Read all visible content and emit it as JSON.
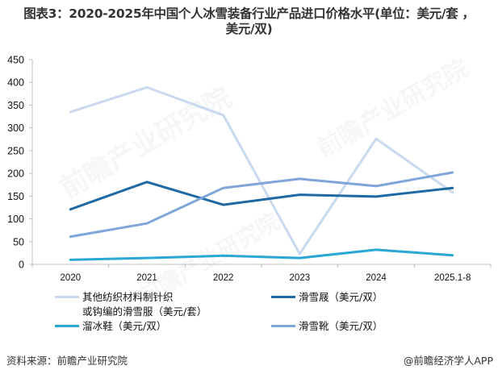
{
  "title": {
    "line1": "图表3：2020-2025年中国个人冰雪装备行业产品进口价格水平(单位：美元/套 ，",
    "line2": "美元/双)"
  },
  "chart_data": {
    "type": "line",
    "title": "图表3：2020-2025年中国个人冰雪装备行业产品进口价格水平(单位：美元/套 ，美元/双)",
    "xlabel": "",
    "ylabel": "",
    "ylim": [
      0,
      450
    ],
    "yticks": [
      0,
      50,
      100,
      150,
      200,
      250,
      300,
      350,
      400,
      450
    ],
    "grid": false,
    "legend_position": "bottom",
    "categories": [
      "2020",
      "2021",
      "2022",
      "2023",
      "2024",
      "2025.1-8"
    ],
    "series": [
      {
        "name": "其他纺织材料制针织或钩编的滑雪服（美元/套）",
        "color": "#c9d9ef",
        "values": [
          335,
          389,
          328,
          23,
          276,
          158
        ]
      },
      {
        "name": "滑雪屐（美元/双）",
        "color": "#1f6aa5",
        "values": [
          121,
          181,
          131,
          153,
          149,
          168
        ]
      },
      {
        "name": "溜冰鞋（美元/双）",
        "color": "#2aa7d4",
        "values": [
          10,
          14,
          19,
          14,
          32,
          20
        ]
      },
      {
        "name": "滑雪靴（美元/双）",
        "color": "#7ea6d8",
        "values": [
          61,
          90,
          168,
          188,
          172,
          202
        ]
      }
    ]
  },
  "legend": {
    "items": [
      {
        "label": "其他纺织材料制针织\n或钩编的滑雪服（美元/套）",
        "color": "#c9d9ef"
      },
      {
        "label": "滑雪屐（美元/双）",
        "color": "#1f6aa5"
      },
      {
        "label": "溜冰鞋（美元/双）",
        "color": "#2aa7d4"
      },
      {
        "label": "滑雪靴（美元/双）",
        "color": "#7ea6d8"
      }
    ]
  },
  "footer": {
    "source": "资料来源：前瞻产业研究院",
    "brand": "@前瞻经济学人APP"
  },
  "watermark": {
    "text": "前瞻产业研究院"
  }
}
